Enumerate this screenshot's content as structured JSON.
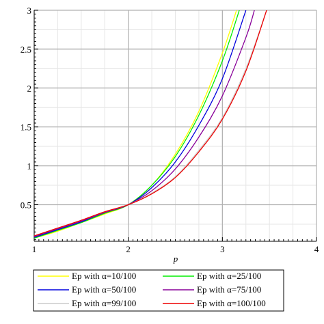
{
  "chart_data": {
    "type": "line",
    "title": "",
    "xlabel": "p",
    "ylabel": "",
    "xlim": [
      1,
      4
    ],
    "ylim": [
      0.03,
      3
    ],
    "grid": true,
    "legend_position": "bottom",
    "x_ticks": [
      1,
      2,
      3,
      4
    ],
    "x_tick_labels": [
      "1",
      "2",
      "3",
      "4"
    ],
    "y_ticks": [
      0.5,
      1,
      1.5,
      2,
      2.5,
      3
    ],
    "y_tick_labels": [
      "0.5",
      "1",
      "1.5",
      "2",
      "2.5",
      "3"
    ],
    "series": [
      {
        "name": "Ep with α=10/100",
        "color": "#ffff00",
        "x": [
          1.0,
          1.25,
          1.5,
          1.75,
          2.0,
          2.25,
          2.5,
          2.75,
          3.0,
          3.15
        ],
        "y": [
          0.07,
          0.16,
          0.27,
          0.38,
          0.5,
          0.75,
          1.15,
          1.7,
          2.45,
          3.0
        ]
      },
      {
        "name": "Ep with α=25/100",
        "color": "#00ee00",
        "x": [
          1.0,
          1.25,
          1.5,
          1.75,
          2.0,
          2.25,
          2.5,
          2.75,
          3.0,
          3.18
        ],
        "y": [
          0.07,
          0.17,
          0.27,
          0.39,
          0.5,
          0.75,
          1.12,
          1.65,
          2.35,
          3.0
        ]
      },
      {
        "name": "Ep with α=50/100",
        "color": "#0000dd",
        "x": [
          1.0,
          1.25,
          1.5,
          1.75,
          2.0,
          2.25,
          2.5,
          2.75,
          3.0,
          3.25
        ],
        "y": [
          0.08,
          0.18,
          0.28,
          0.4,
          0.5,
          0.72,
          1.05,
          1.52,
          2.12,
          3.0
        ]
      },
      {
        "name": "Ep with α=75/100",
        "color": "#880099",
        "x": [
          1.0,
          1.25,
          1.5,
          1.75,
          2.0,
          2.25,
          2.5,
          2.75,
          3.0,
          3.25,
          3.34
        ],
        "y": [
          0.09,
          0.19,
          0.29,
          0.4,
          0.5,
          0.68,
          0.96,
          1.37,
          1.9,
          2.65,
          3.0
        ]
      },
      {
        "name": "Ep with α=99/100",
        "color": "#cccccc",
        "x": [
          1.0,
          1.25,
          1.5,
          1.75,
          2.0,
          2.25,
          2.5,
          2.75,
          3.0,
          3.25,
          3.47
        ],
        "y": [
          0.1,
          0.2,
          0.3,
          0.41,
          0.5,
          0.65,
          0.86,
          1.2,
          1.62,
          2.25,
          3.0
        ]
      },
      {
        "name": "Ep with α=100/100",
        "color": "#ee0000",
        "x": [
          1.0,
          1.25,
          1.5,
          1.75,
          2.0,
          2.25,
          2.5,
          2.75,
          3.0,
          3.25,
          3.47
        ],
        "y": [
          0.1,
          0.2,
          0.3,
          0.41,
          0.5,
          0.64,
          0.85,
          1.18,
          1.6,
          2.22,
          3.0
        ]
      }
    ]
  }
}
